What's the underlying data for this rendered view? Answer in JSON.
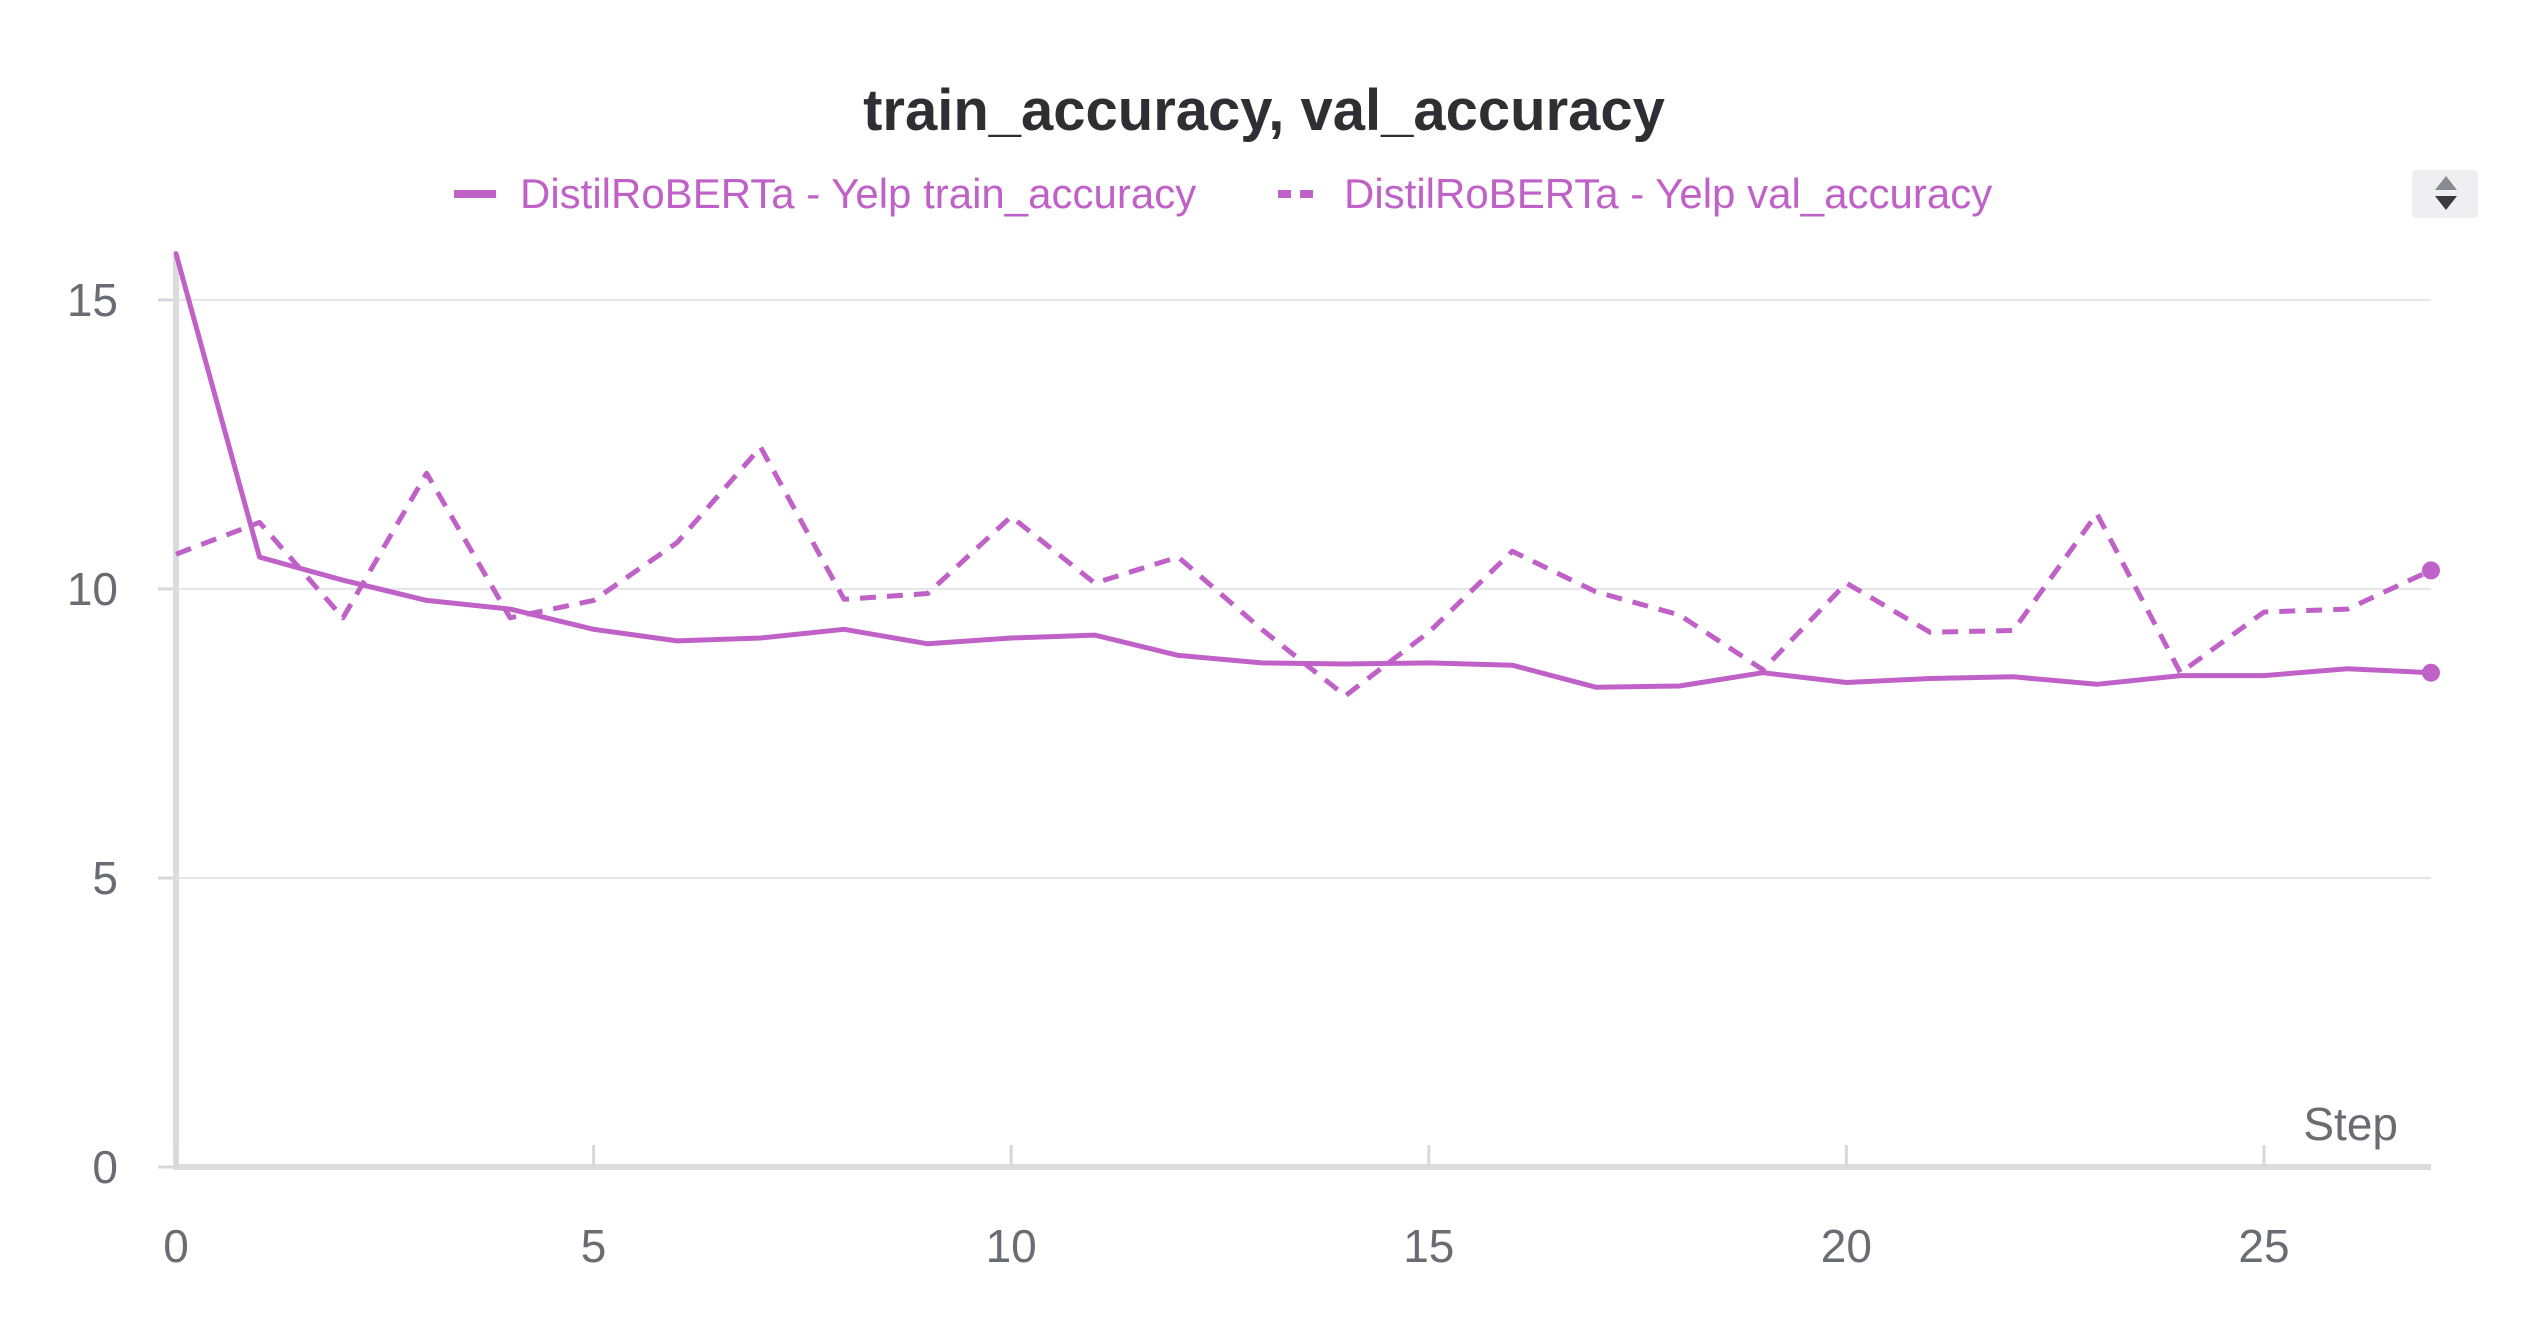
{
  "chart_data": {
    "type": "line",
    "title": "train_accuracy, val_accuracy",
    "xlabel": "Step",
    "ylabel": "",
    "xlim": [
      0,
      27
    ],
    "ylim": [
      0,
      16
    ],
    "x_ticks": [
      0,
      5,
      10,
      15,
      20,
      25
    ],
    "y_ticks": [
      0,
      5,
      10,
      15
    ],
    "grid": true,
    "legend_position": "top-center",
    "x": [
      0,
      1,
      2,
      3,
      4,
      5,
      6,
      7,
      8,
      9,
      10,
      11,
      12,
      13,
      14,
      15,
      16,
      17,
      18,
      19,
      20,
      21,
      22,
      23,
      24,
      25,
      26,
      27
    ],
    "series": [
      {
        "name": "DistilRoBERTa - Yelp train_accuracy",
        "style": "solid",
        "color": "#c061c8",
        "values": [
          15.8,
          10.55,
          10.15,
          9.8,
          9.65,
          9.3,
          9.1,
          9.15,
          9.3,
          9.05,
          9.15,
          9.2,
          8.85,
          8.72,
          8.7,
          8.72,
          8.68,
          8.3,
          8.32,
          8.55,
          8.38,
          8.45,
          8.48,
          8.35,
          8.5,
          8.5,
          8.62,
          8.55
        ]
      },
      {
        "name": "DistilRoBERTa - Yelp val_accuracy",
        "style": "dashed",
        "color": "#c061c8",
        "values": [
          10.6,
          11.15,
          9.5,
          12.0,
          9.5,
          9.8,
          10.8,
          12.45,
          9.82,
          9.92,
          11.25,
          10.1,
          10.55,
          9.3,
          8.15,
          9.25,
          10.65,
          9.95,
          9.55,
          8.6,
          10.1,
          9.25,
          9.28,
          11.3,
          8.55,
          9.6,
          9.65,
          10.32
        ]
      }
    ]
  },
  "ui": {
    "scroll_widget_icon": "sort-arrows-icon"
  }
}
